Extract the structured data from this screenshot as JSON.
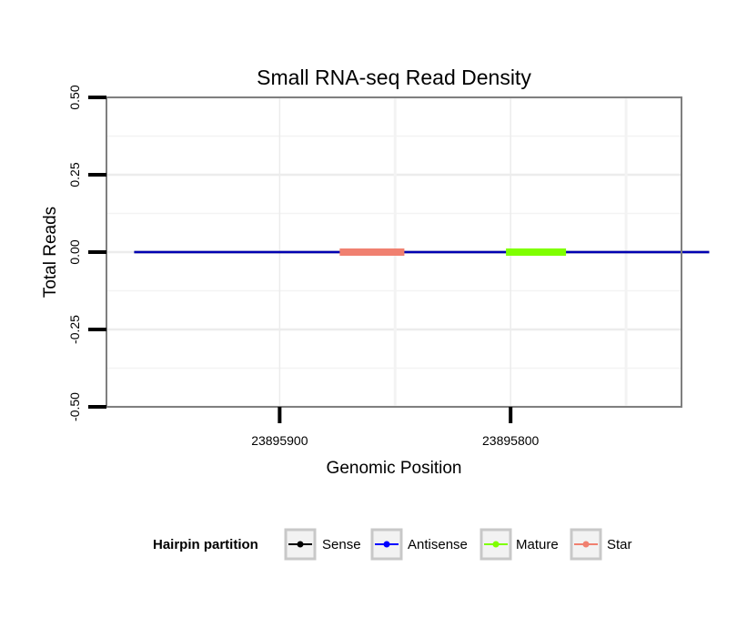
{
  "chart_data": {
    "type": "line",
    "title": "Small RNA-seq Read Density",
    "xlabel": "Genomic Position",
    "ylabel": "Total Reads",
    "x_reversed": true,
    "xlim": [
      23895975,
      23895726
    ],
    "ylim": [
      -0.5,
      0.5
    ],
    "x_ticks": [
      23895900,
      23895800
    ],
    "x_tick_labels": [
      "23895900",
      "23895800"
    ],
    "y_ticks": [
      -0.5,
      -0.25,
      0,
      0.25,
      0.5
    ],
    "y_tick_labels": [
      "-0.50",
      "-0.25",
      "0.00",
      "0.25",
      "0.50"
    ],
    "grid": true,
    "legend": {
      "title": "Hairpin partition",
      "placement": "bottom",
      "entries": [
        {
          "name": "Sense",
          "color": "#000000"
        },
        {
          "name": "Antisense",
          "color": "#0000ff"
        },
        {
          "name": "Mature",
          "color": "#7fff00"
        },
        {
          "name": "Star",
          "color": "#f08070"
        }
      ]
    },
    "series": [
      {
        "name": "Sense",
        "color": "#000000",
        "x": [
          23895963,
          23895714
        ],
        "values": [
          0,
          0
        ]
      },
      {
        "name": "Antisense",
        "color": "#0000ff",
        "x": [
          23895963,
          23895714
        ],
        "values": [
          0,
          0
        ]
      },
      {
        "name": "Star",
        "color": "#f08070",
        "x": [
          23895874,
          23895846
        ],
        "values": [
          0,
          0
        ]
      },
      {
        "name": "Mature",
        "color": "#7fff00",
        "x": [
          23895802,
          23895776
        ],
        "values": [
          0,
          0
        ]
      }
    ]
  }
}
